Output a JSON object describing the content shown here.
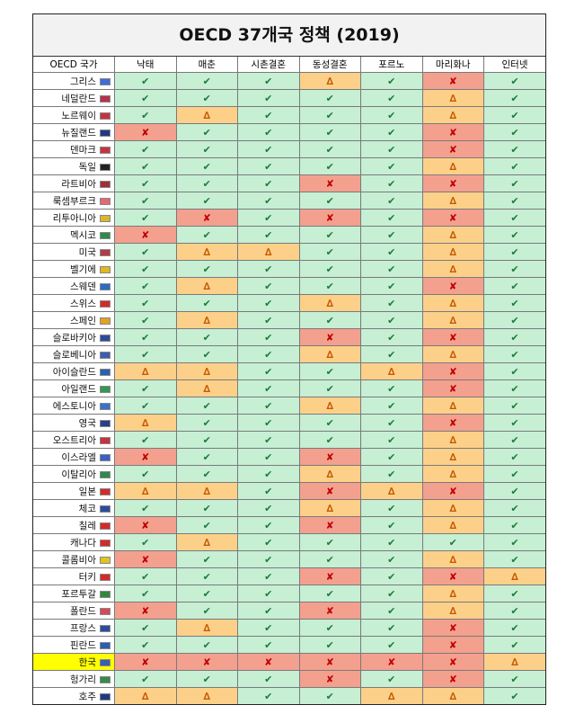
{
  "title": "OECD 37개국 정책 (2019)",
  "headers": [
    "OECD 국가",
    "낙태",
    "매춘",
    "시촌결혼",
    "동성결혼",
    "포르노",
    "마리화나",
    "인터넷"
  ],
  "symbols": {
    "legal": "✔",
    "partial": "∆",
    "illegal": "✘"
  },
  "highlighted_country": "한국",
  "colors": {
    "legal_bg": "#c6efd4",
    "partial_bg": "#fdd08a",
    "illegal_bg": "#f4a08f",
    "highlight": "#ffff00"
  },
  "rows": [
    {
      "country": "그리스",
      "flag": "#3d6fd6",
      "cells": [
        "legal",
        "legal",
        "legal",
        "partial",
        "legal",
        "illegal",
        "legal"
      ]
    },
    {
      "country": "네덜란드",
      "flag": "#b5344a",
      "cells": [
        "legal",
        "legal",
        "legal",
        "legal",
        "legal",
        "partial",
        "legal"
      ]
    },
    {
      "country": "노르웨이",
      "flag": "#c8323f",
      "cells": [
        "legal",
        "partial",
        "legal",
        "legal",
        "legal",
        "partial",
        "legal"
      ]
    },
    {
      "country": "뉴질랜드",
      "flag": "#1f3b80",
      "cells": [
        "illegal",
        "legal",
        "legal",
        "legal",
        "legal",
        "illegal",
        "legal"
      ]
    },
    {
      "country": "덴마크",
      "flag": "#c8323f",
      "cells": [
        "legal",
        "legal",
        "legal",
        "legal",
        "legal",
        "illegal",
        "legal"
      ]
    },
    {
      "country": "독일",
      "flag": "#222222",
      "cells": [
        "legal",
        "legal",
        "legal",
        "legal",
        "legal",
        "partial",
        "legal"
      ]
    },
    {
      "country": "라트비아",
      "flag": "#9e3039",
      "cells": [
        "legal",
        "legal",
        "legal",
        "illegal",
        "legal",
        "illegal",
        "legal"
      ]
    },
    {
      "country": "룩셈부르크",
      "flag": "#e06a74",
      "cells": [
        "legal",
        "legal",
        "legal",
        "legal",
        "legal",
        "partial",
        "legal"
      ]
    },
    {
      "country": "리투아니아",
      "flag": "#d8b82a",
      "cells": [
        "legal",
        "illegal",
        "legal",
        "illegal",
        "legal",
        "illegal",
        "legal"
      ]
    },
    {
      "country": "멕시코",
      "flag": "#2e8a4a",
      "cells": [
        "illegal",
        "legal",
        "legal",
        "legal",
        "legal",
        "partial",
        "legal"
      ]
    },
    {
      "country": "미국",
      "flag": "#b53a4a",
      "cells": [
        "legal",
        "partial",
        "partial",
        "legal",
        "legal",
        "partial",
        "legal"
      ]
    },
    {
      "country": "벨기에",
      "flag": "#e0b820",
      "cells": [
        "legal",
        "legal",
        "legal",
        "legal",
        "legal",
        "partial",
        "legal"
      ]
    },
    {
      "country": "스웨덴",
      "flag": "#2d6bc2",
      "cells": [
        "legal",
        "partial",
        "legal",
        "legal",
        "legal",
        "illegal",
        "legal"
      ]
    },
    {
      "country": "스위스",
      "flag": "#d42a2a",
      "cells": [
        "legal",
        "legal",
        "legal",
        "partial",
        "legal",
        "partial",
        "legal"
      ]
    },
    {
      "country": "스페인",
      "flag": "#e0a420",
      "cells": [
        "legal",
        "partial",
        "legal",
        "legal",
        "legal",
        "partial",
        "legal"
      ]
    },
    {
      "country": "슬로바키아",
      "flag": "#2b4c9e",
      "cells": [
        "legal",
        "legal",
        "legal",
        "illegal",
        "legal",
        "illegal",
        "legal"
      ]
    },
    {
      "country": "슬로베니아",
      "flag": "#3a5fb0",
      "cells": [
        "legal",
        "legal",
        "legal",
        "partial",
        "legal",
        "partial",
        "legal"
      ]
    },
    {
      "country": "아이슬란드",
      "flag": "#2b5fb0",
      "cells": [
        "partial",
        "partial",
        "legal",
        "legal",
        "partial",
        "illegal",
        "legal"
      ]
    },
    {
      "country": "아일랜드",
      "flag": "#2e9a52",
      "cells": [
        "legal",
        "partial",
        "legal",
        "legal",
        "legal",
        "illegal",
        "legal"
      ]
    },
    {
      "country": "에스토니아",
      "flag": "#3a72c8",
      "cells": [
        "legal",
        "legal",
        "legal",
        "partial",
        "legal",
        "partial",
        "legal"
      ]
    },
    {
      "country": "영국",
      "flag": "#2a3f8a",
      "cells": [
        "partial",
        "legal",
        "legal",
        "legal",
        "legal",
        "illegal",
        "legal"
      ]
    },
    {
      "country": "오스트리아",
      "flag": "#c8323f",
      "cells": [
        "legal",
        "legal",
        "legal",
        "legal",
        "legal",
        "partial",
        "legal"
      ]
    },
    {
      "country": "이스라엘",
      "flag": "#3a5fc8",
      "cells": [
        "illegal",
        "legal",
        "legal",
        "illegal",
        "legal",
        "partial",
        "legal"
      ]
    },
    {
      "country": "이탈리아",
      "flag": "#2e8a4a",
      "cells": [
        "legal",
        "legal",
        "legal",
        "partial",
        "legal",
        "partial",
        "legal"
      ]
    },
    {
      "country": "일본",
      "flag": "#d42a2a",
      "cells": [
        "partial",
        "partial",
        "legal",
        "illegal",
        "partial",
        "illegal",
        "legal"
      ]
    },
    {
      "country": "체코",
      "flag": "#2b4c9e",
      "cells": [
        "legal",
        "legal",
        "legal",
        "partial",
        "legal",
        "partial",
        "legal"
      ]
    },
    {
      "country": "칠레",
      "flag": "#d42a2a",
      "cells": [
        "illegal",
        "legal",
        "legal",
        "illegal",
        "legal",
        "partial",
        "legal"
      ]
    },
    {
      "country": "캐나다",
      "flag": "#d42a2a",
      "cells": [
        "legal",
        "partial",
        "legal",
        "legal",
        "legal",
        "legal",
        "legal"
      ]
    },
    {
      "country": "콜롬비아",
      "flag": "#e0c420",
      "cells": [
        "illegal",
        "legal",
        "legal",
        "legal",
        "legal",
        "partial",
        "legal"
      ]
    },
    {
      "country": "터키",
      "flag": "#d42a2a",
      "cells": [
        "legal",
        "legal",
        "legal",
        "illegal",
        "legal",
        "illegal",
        "partial"
      ]
    },
    {
      "country": "포르투갈",
      "flag": "#2e8a3a",
      "cells": [
        "legal",
        "legal",
        "legal",
        "legal",
        "legal",
        "partial",
        "legal"
      ]
    },
    {
      "country": "폴란드",
      "flag": "#d44a5a",
      "cells": [
        "illegal",
        "legal",
        "legal",
        "illegal",
        "legal",
        "partial",
        "legal"
      ]
    },
    {
      "country": "프랑스",
      "flag": "#2b4c9e",
      "cells": [
        "legal",
        "partial",
        "legal",
        "legal",
        "legal",
        "illegal",
        "legal"
      ]
    },
    {
      "country": "핀란드",
      "flag": "#2b5fb0",
      "cells": [
        "legal",
        "legal",
        "legal",
        "legal",
        "legal",
        "illegal",
        "legal"
      ]
    },
    {
      "country": "한국",
      "flag": "#3a5fb0",
      "cells": [
        "illegal",
        "illegal",
        "illegal",
        "illegal",
        "illegal",
        "illegal",
        "partial"
      ]
    },
    {
      "country": "헝가리",
      "flag": "#3a8a4a",
      "cells": [
        "legal",
        "legal",
        "legal",
        "illegal",
        "legal",
        "illegal",
        "legal"
      ]
    },
    {
      "country": "호주",
      "flag": "#1f3b80",
      "cells": [
        "partial",
        "partial",
        "legal",
        "legal",
        "partial",
        "partial",
        "legal"
      ]
    }
  ]
}
